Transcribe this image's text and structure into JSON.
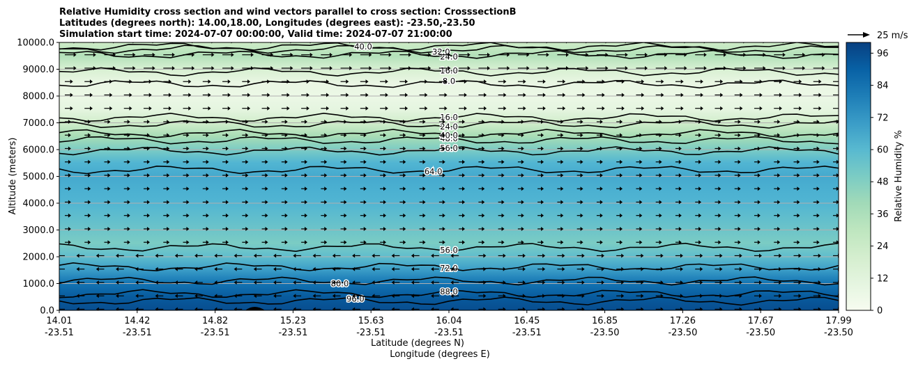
{
  "chart_data": {
    "type": "contourf",
    "title": [
      "Relative Humidity cross section and wind vectors parallel to cross section: CrosssectionB",
      "Latitudes (degrees north): 14.00,18.00, Longitudes (degrees east): -23.50,-23.50",
      "Simulation start time: 2024-07-07 00:00:00, Valid time: 2024-07-07 21:00:00"
    ],
    "ylabel": "Altitude (meters)",
    "xlabel_1": "Latitude (degrees N)",
    "xlabel_2": "Longitude (degrees E)",
    "ylim": [
      0,
      10000
    ],
    "yticks": [
      "0.0",
      "1000.0",
      "2000.0",
      "3000.0",
      "4000.0",
      "5000.0",
      "6000.0",
      "7000.0",
      "8000.0",
      "9000.0",
      "10000.0"
    ],
    "xticks_lat": [
      "14.01",
      "14.42",
      "14.82",
      "15.23",
      "15.63",
      "16.04",
      "16.45",
      "16.85",
      "17.26",
      "17.67",
      "17.99"
    ],
    "xticks_lon": [
      "-23.51",
      "-23.51",
      "-23.51",
      "-23.51",
      "-23.51",
      "-23.51",
      "-23.51",
      "-23.50",
      "-23.50",
      "-23.50",
      "-23.50"
    ],
    "colorbar": {
      "label": "Relative Humidity %",
      "range": [
        0,
        100
      ],
      "ticks": [
        "0",
        "12",
        "24",
        "36",
        "48",
        "60",
        "72",
        "84",
        "96"
      ]
    },
    "quiver_key": "25 m/s",
    "profile": [
      {
        "alt": 0,
        "rh": 96
      },
      {
        "alt": 500,
        "rh": 92
      },
      {
        "alt": 1000,
        "rh": 84
      },
      {
        "alt": 1500,
        "rh": 70
      },
      {
        "alt": 2000,
        "rh": 58
      },
      {
        "alt": 2500,
        "rh": 50
      },
      {
        "alt": 3000,
        "rh": 54
      },
      {
        "alt": 3500,
        "rh": 58
      },
      {
        "alt": 4000,
        "rh": 62
      },
      {
        "alt": 4500,
        "rh": 64
      },
      {
        "alt": 5000,
        "rh": 66
      },
      {
        "alt": 5500,
        "rh": 62
      },
      {
        "alt": 6000,
        "rh": 50
      },
      {
        "alt": 6500,
        "rh": 38
      },
      {
        "alt": 7000,
        "rh": 22
      },
      {
        "alt": 7500,
        "rh": 10
      },
      {
        "alt": 8000,
        "rh": 6
      },
      {
        "alt": 8500,
        "rh": 8
      },
      {
        "alt": 9000,
        "rh": 18
      },
      {
        "alt": 9500,
        "rh": 34
      },
      {
        "alt": 10000,
        "rh": 24
      }
    ],
    "contours": [
      {
        "level": "96.0",
        "alt": 350,
        "label_at": 0.38
      },
      {
        "level": "88.0",
        "alt": 620,
        "label_at": 0.5
      },
      {
        "level": "80.0",
        "alt": 1100,
        "label_at": 0.36
      },
      {
        "level": "72.0",
        "alt": 1620,
        "label_at": 0.5
      },
      {
        "level": "56.0",
        "alt": 2350,
        "label_at": 0.5
      },
      {
        "level": "64.0",
        "alt": 5250,
        "label_at": 0.48
      },
      {
        "level": "56.0",
        "alt": 5950,
        "label_at": 0.5
      },
      {
        "level": "48.0",
        "alt": 6350,
        "label_at": 0.5
      },
      {
        "level": "40.0",
        "alt": 6600,
        "label_at": 0.5
      },
      {
        "level": "24.0",
        "alt": 6950,
        "label_at": 0.5
      },
      {
        "level": "16.0",
        "alt": 7200,
        "label_at": 0.5
      },
      {
        "level": "8.0",
        "alt": 8450,
        "label_at": 0.5
      },
      {
        "level": "16.0",
        "alt": 8900,
        "label_at": 0.5
      },
      {
        "level": "24.0",
        "alt": 9550,
        "label_at": 0.5
      },
      {
        "level": "32.0",
        "alt": 9750,
        "label_at": 0.49
      },
      {
        "level": "40.0",
        "alt": 9850,
        "label_at": 0.39
      }
    ]
  }
}
